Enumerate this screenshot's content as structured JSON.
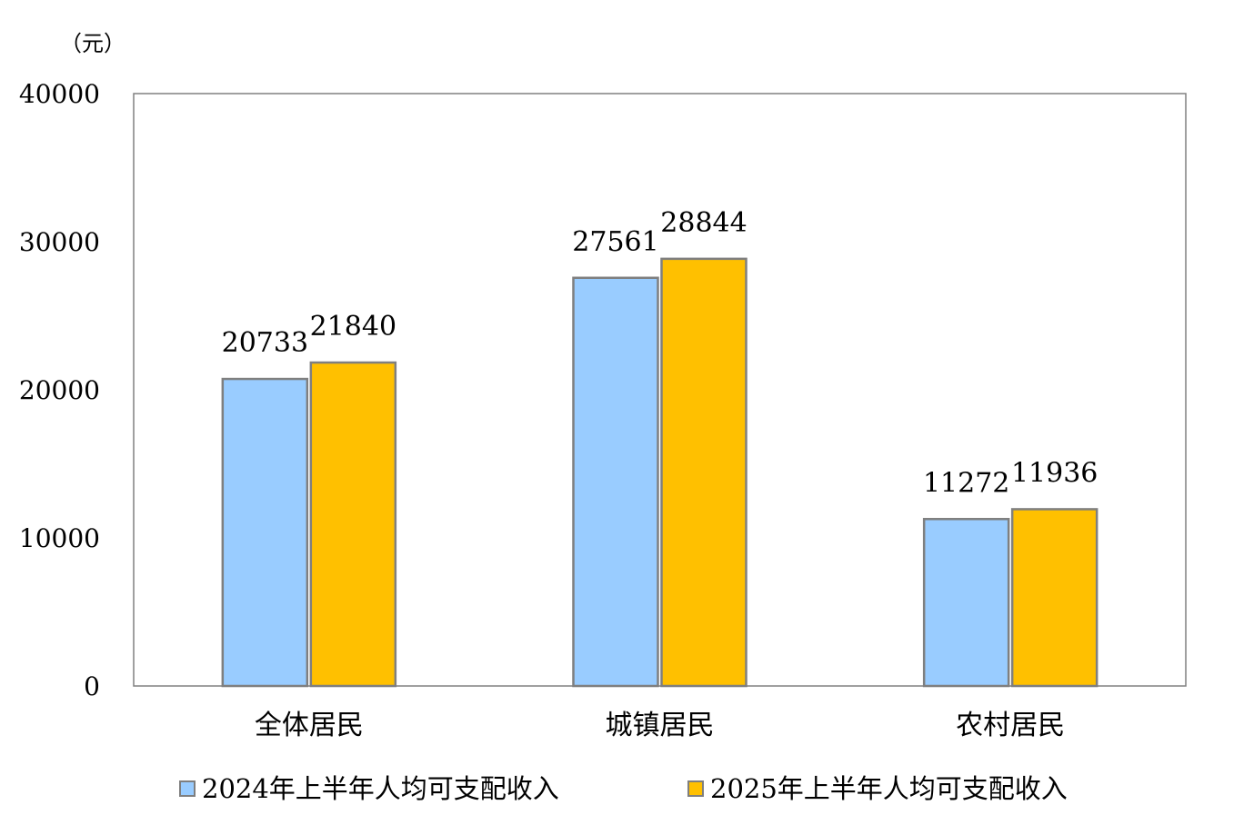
{
  "chart_data": {
    "type": "bar",
    "unit_label": "（元）",
    "categories": [
      "全体居民",
      "城镇居民",
      "农村居民"
    ],
    "series": [
      {
        "name": "2024年上半年人均可支配收入",
        "values": [
          20733,
          27561,
          11272
        ],
        "color": "#99ccff"
      },
      {
        "name": "2025年上半年人均可支配收入",
        "values": [
          21840,
          28844,
          11936
        ],
        "color": "#ffc000"
      }
    ],
    "ylim": [
      0,
      40000
    ],
    "yticks": [
      "0",
      "10000",
      "20000",
      "30000",
      "40000"
    ],
    "grid": false,
    "legend_position": "bottom"
  }
}
